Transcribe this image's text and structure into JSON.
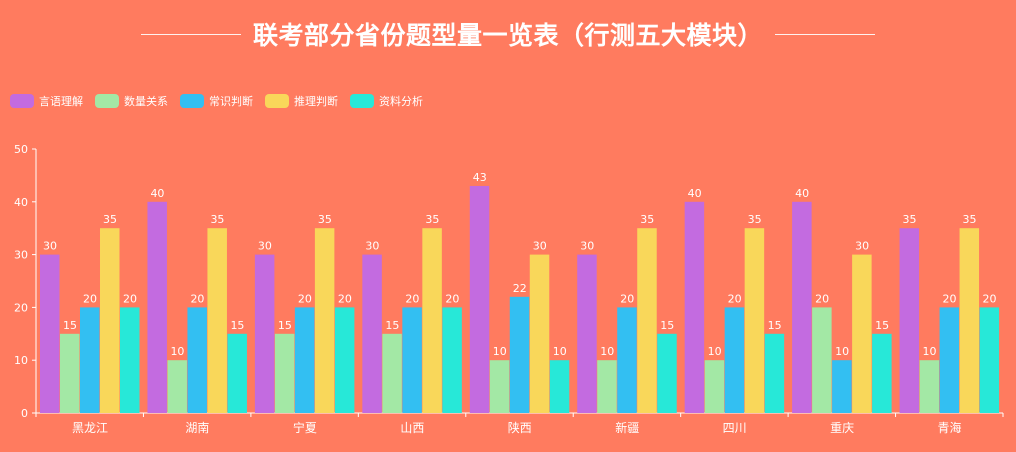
{
  "chart_data": {
    "type": "bar",
    "title": "联考部分省份题型量一览表（行测五大模块）",
    "xlabel": "",
    "ylabel": "",
    "ylim": [
      0,
      50
    ],
    "yticks": [
      0,
      10,
      20,
      30,
      40,
      50
    ],
    "grid": false,
    "legend_position": "top-left",
    "categories": [
      "黑龙江",
      "湖南",
      "宁夏",
      "山西",
      "陕西",
      "新疆",
      "四川",
      "重庆",
      "青海"
    ],
    "series": [
      {
        "name": "言语理解",
        "color": "#C36BE0",
        "values": [
          30,
          40,
          30,
          30,
          43,
          30,
          40,
          40,
          35
        ]
      },
      {
        "name": "数量关系",
        "color": "#A3E8A5",
        "values": [
          15,
          10,
          15,
          15,
          10,
          10,
          10,
          20,
          10
        ]
      },
      {
        "name": "常识判断",
        "color": "#33BFF2",
        "values": [
          20,
          20,
          20,
          20,
          22,
          20,
          20,
          10,
          20
        ]
      },
      {
        "name": "推理判断",
        "color": "#F9D75A",
        "values": [
          35,
          35,
          35,
          35,
          30,
          35,
          35,
          30,
          35
        ]
      },
      {
        "name": "资料分析",
        "color": "#27E8D8",
        "values": [
          20,
          15,
          20,
          20,
          10,
          15,
          15,
          15,
          20
        ]
      }
    ]
  }
}
